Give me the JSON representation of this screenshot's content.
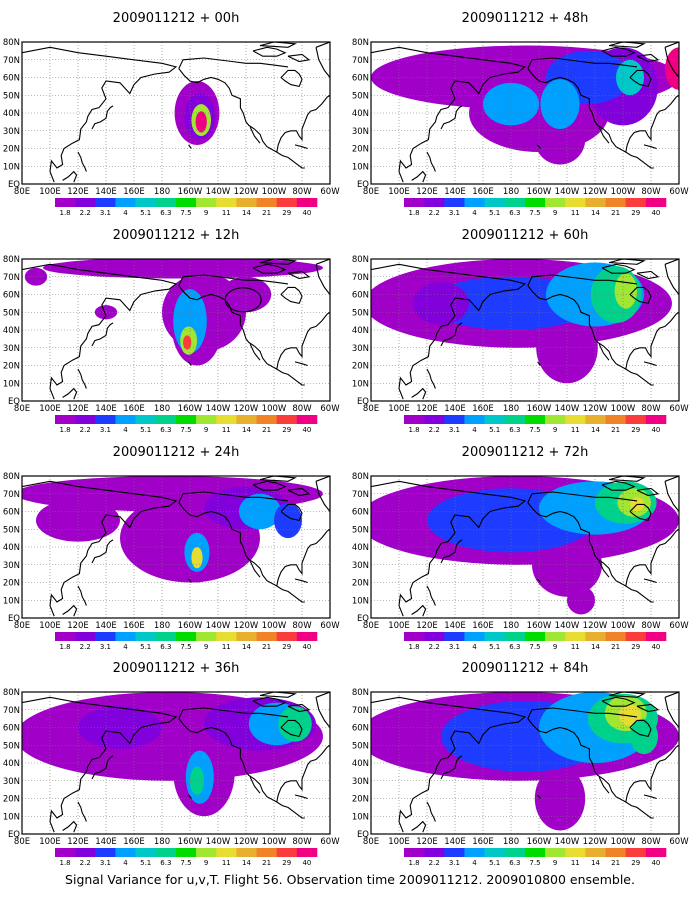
{
  "caption": "Signal Variance for u,v,T. Flight 56. Observation time 2009011212. 2009010800 ensemble.",
  "x_tick_labels": [
    "80E",
    "100E",
    "120E",
    "140E",
    "160E",
    "180",
    "160W",
    "140W",
    "120W",
    "100W",
    "80W",
    "60W"
  ],
  "y_tick_labels": [
    "EQ",
    "10N",
    "20N",
    "30N",
    "40N",
    "50N",
    "60N",
    "70N",
    "80N"
  ],
  "colorbar": {
    "labels": [
      "1.8",
      "2.2",
      "3.1",
      "4",
      "5.1",
      "6.3",
      "7.5",
      "9",
      "11",
      "14",
      "21",
      "29",
      "40"
    ],
    "colors": [
      "#a000c8",
      "#8200dc",
      "#1e3cff",
      "#00a0ff",
      "#00c8c8",
      "#00d28c",
      "#00dc00",
      "#a0e632",
      "#e6dc32",
      "#e6af2d",
      "#f08228",
      "#fa3c3c",
      "#f00082"
    ]
  },
  "panels": [
    {
      "title": "2009011212 + 00h"
    },
    {
      "title": "2009011212 + 48h"
    },
    {
      "title": "2009011212 + 12h"
    },
    {
      "title": "2009011212 + 60h"
    },
    {
      "title": "2009011212 + 24h"
    },
    {
      "title": "2009011212 + 72h"
    },
    {
      "title": "2009011212 + 36h"
    },
    {
      "title": "2009011212 + 84h"
    }
  ]
}
